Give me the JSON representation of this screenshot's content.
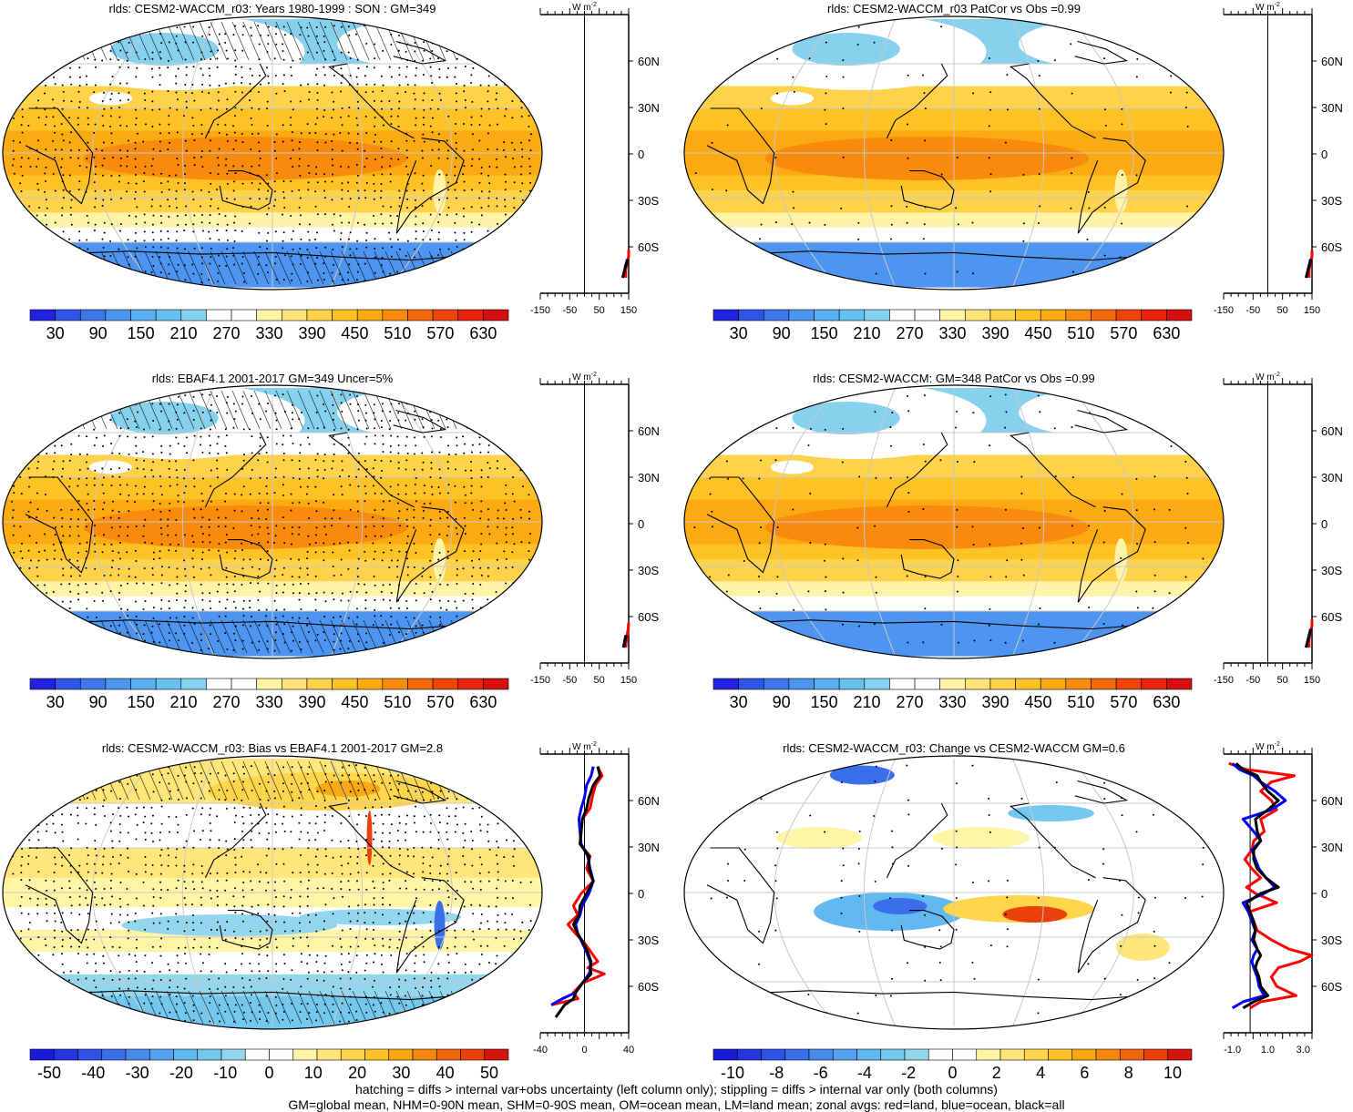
{
  "footnotes": [
    "hatching = diffs > internal var+obs uncertainty (left column only); stippling = diffs > internal var only (both columns)",
    "GM=global mean, NHM=0-90N mean, SHM=0-90S mean, OM=ocean mean, LM=land mean; zonal avgs: red=land, blue=ocean, black=all"
  ],
  "colors": {
    "land": "#ff0000",
    "ocean": "#0000ff",
    "all": "#000000",
    "graticule": "#c8c8c8",
    "coast": "#000000"
  },
  "chart_data": [
    {
      "type": "heatmap",
      "title": "rlds: CESM2-WACCM_r03: Years 1980-1999 : SON : GM=349",
      "field": "abs",
      "palette": "absolute",
      "colorbar_labels": [
        "30",
        "90",
        "150",
        "210",
        "270",
        "330",
        "390",
        "450",
        "510",
        "570",
        "630"
      ],
      "hatching": true,
      "stippling": "dense",
      "zonal_panel": {
        "unit": "W m-2",
        "x_ticks": [
          "-150",
          "-50",
          "50",
          "150"
        ],
        "xlim": [
          -150,
          150
        ],
        "lat_labels": [
          "60N",
          "30N",
          "0",
          "30S",
          "60S"
        ],
        "series": [
          {
            "color": "land",
            "lat": [
              -62,
              -66,
              -70,
              -75,
              -80
            ],
            "values": [
              150,
              150,
              145,
              140,
              140
            ]
          },
          {
            "color": "ocean",
            "lat": [
              -68,
              -72,
              -76,
              -80
            ],
            "values": [
              145,
              140,
              135,
              130
            ]
          },
          {
            "color": "all",
            "lat": [
              -68,
              -72,
              -76,
              -80
            ],
            "values": [
              148,
              140,
              135,
              130
            ]
          }
        ]
      }
    },
    {
      "type": "heatmap",
      "title": "rlds: CESM2-WACCM_r03 PatCor vs Obs =0.99",
      "field": "abs",
      "palette": "absolute",
      "colorbar_labels": [
        "30",
        "90",
        "150",
        "210",
        "270",
        "330",
        "390",
        "450",
        "510",
        "570",
        "630"
      ],
      "hatching": false,
      "stippling": "sparse",
      "zonal_panel": {
        "unit": "W m-2",
        "x_ticks": [
          "-150",
          "-50",
          "50",
          "150"
        ],
        "xlim": [
          -150,
          150
        ],
        "lat_labels": [
          "60N",
          "30N",
          "0",
          "30S",
          "60S"
        ],
        "series": [
          {
            "color": "land",
            "lat": [
              -62,
              -66,
              -70,
              -75,
              -80
            ],
            "values": [
              150,
              150,
              145,
              140,
              140
            ]
          },
          {
            "color": "ocean",
            "lat": [
              -68,
              -72,
              -76,
              -80
            ],
            "values": [
              145,
              140,
              135,
              130
            ]
          },
          {
            "color": "all",
            "lat": [
              -68,
              -72,
              -76,
              -80
            ],
            "values": [
              148,
              140,
              135,
              130
            ]
          }
        ]
      }
    },
    {
      "type": "heatmap",
      "title": "rlds: EBAF4.1 2001-2017 GM=349 Uncer=5%",
      "field": "abs",
      "palette": "absolute",
      "colorbar_labels": [
        "30",
        "90",
        "150",
        "210",
        "270",
        "330",
        "390",
        "450",
        "510",
        "570",
        "630"
      ],
      "hatching": true,
      "stippling": "dense",
      "zonal_panel": {
        "unit": "W m-2",
        "x_ticks": [
          "-150",
          "-50",
          "50",
          "150"
        ],
        "xlim": [
          -150,
          150
        ],
        "lat_labels": [
          "60N",
          "30N",
          "0",
          "30S",
          "60S"
        ],
        "series": [
          {
            "color": "land",
            "lat": [
              -64,
              -68,
              -72,
              -76,
              -80
            ],
            "values": [
              150,
              148,
              145,
              142,
              140
            ]
          },
          {
            "color": "ocean",
            "lat": [
              -72,
              -76,
              -80
            ],
            "values": [
              140,
              136,
              132
            ]
          },
          {
            "color": "all",
            "lat": [
              -72,
              -76,
              -80
            ],
            "values": [
              142,
              137,
              133
            ]
          }
        ]
      }
    },
    {
      "type": "heatmap",
      "title": "rlds: CESM2-WACCM: GM=348 PatCor vs Obs =0.99",
      "field": "abs",
      "palette": "absolute",
      "colorbar_labels": [
        "30",
        "90",
        "150",
        "210",
        "270",
        "330",
        "390",
        "450",
        "510",
        "570",
        "630"
      ],
      "hatching": false,
      "stippling": "sparse",
      "zonal_panel": {
        "unit": "W m-2",
        "x_ticks": [
          "-150",
          "-50",
          "50",
          "150"
        ],
        "xlim": [
          -150,
          150
        ],
        "lat_labels": [
          "60N",
          "30N",
          "0",
          "30S",
          "60S"
        ],
        "series": [
          {
            "color": "land",
            "lat": [
              -62,
              -66,
              -70,
              -75,
              -80
            ],
            "values": [
              150,
              150,
              145,
              140,
              140
            ]
          },
          {
            "color": "ocean",
            "lat": [
              -68,
              -72,
              -76,
              -80
            ],
            "values": [
              145,
              140,
              135,
              130
            ]
          },
          {
            "color": "all",
            "lat": [
              -68,
              -72,
              -76,
              -80
            ],
            "values": [
              148,
              140,
              135,
              130
            ]
          }
        ]
      }
    },
    {
      "type": "heatmap",
      "title": "rlds: CESM2-WACCM_r03: Bias vs EBAF4.1 2001-2017  GM=2.8",
      "field": "bias",
      "palette": "difference",
      "colorbar_labels": [
        "-50",
        "-40",
        "-30",
        "-20",
        "-10",
        "0",
        "10",
        "20",
        "30",
        "40",
        "50"
      ],
      "hatching": true,
      "stippling": "dense",
      "zonal_panel": {
        "unit": "W m-2",
        "x_ticks": [
          "-40",
          "0",
          "40"
        ],
        "xlim": [
          -40,
          40
        ],
        "lat_labels": [
          "60N",
          "30N",
          "0",
          "30S",
          "60S"
        ],
        "series": [
          {
            "color": "land",
            "lat": [
              82,
              76,
              70,
              62,
              55,
              48,
              40,
              32,
              24,
              16,
              8,
              0,
              -8,
              -14,
              -20,
              -26,
              -32,
              -38,
              -44,
              -48,
              -52,
              -58,
              -64,
              -68,
              -72
            ],
            "values": [
              12,
              16,
              10,
              7,
              5,
              -2,
              -3,
              -4,
              5,
              2,
              8,
              -3,
              -10,
              -6,
              -15,
              -8,
              0,
              6,
              12,
              3,
              18,
              -2,
              -10,
              -6,
              -30
            ]
          },
          {
            "color": "ocean",
            "lat": [
              82,
              76,
              70,
              62,
              55,
              48,
              40,
              32,
              24,
              16,
              8,
              0,
              -8,
              -14,
              -20,
              -26,
              -32,
              -38,
              -44,
              -48,
              -52,
              -58,
              -64,
              -68,
              -72
            ],
            "values": [
              8,
              6,
              2,
              0,
              -3,
              -5,
              -4,
              -3,
              3,
              5,
              8,
              4,
              -2,
              -4,
              -8,
              -6,
              -2,
              2,
              5,
              6,
              4,
              -2,
              -8,
              -20,
              -30
            ]
          },
          {
            "color": "all",
            "lat": [
              82,
              76,
              70,
              62,
              55,
              48,
              40,
              32,
              24,
              16,
              8,
              0,
              -8,
              -14,
              -20,
              -26,
              -32,
              -38,
              -44,
              -48,
              -52,
              -58,
              -64,
              -68,
              -72,
              -76,
              -80
            ],
            "values": [
              12,
              14,
              8,
              4,
              2,
              -2,
              -3,
              -4,
              4,
              4,
              8,
              2,
              -4,
              -5,
              -10,
              -6,
              -1,
              3,
              6,
              5,
              6,
              -2,
              -8,
              -10,
              -18,
              -22,
              -26
            ]
          }
        ]
      }
    },
    {
      "type": "heatmap",
      "title": "rlds: CESM2-WACCM_r03: Change vs CESM2-WACCM GM=0.6",
      "field": "change",
      "palette": "difference",
      "colorbar_labels": [
        "-10",
        "-8",
        "-6",
        "-4",
        "-2",
        "0",
        "2",
        "4",
        "6",
        "8",
        "10"
      ],
      "hatching": false,
      "stippling": "sparse",
      "zonal_panel": {
        "unit": "W m-2",
        "x_ticks": [
          "-1.0",
          "1.0",
          "3.0"
        ],
        "xlim": [
          -1.5,
          3.5
        ],
        "lat_labels": [
          "60N",
          "30N",
          "0",
          "30S",
          "60S"
        ],
        "series": [
          {
            "color": "land",
            "lat": [
              84,
              80,
              76,
              72,
              66,
              60,
              54,
              48,
              40,
              34,
              28,
              22,
              16,
              10,
              4,
              0,
              -6,
              -12,
              -18,
              -24,
              -30,
              -36,
              -40,
              -44,
              -48,
              -54,
              -60,
              -66,
              -70,
              -74
            ],
            "values": [
              -1.2,
              -0.2,
              2.5,
              1.2,
              0.6,
              1.2,
              1.5,
              0.6,
              0.8,
              0.2,
              0.1,
              -0.3,
              0.1,
              0.6,
              -0.2,
              0.3,
              1.5,
              -0.1,
              0.2,
              0.4,
              1.2,
              2.2,
              3.5,
              2.8,
              1.6,
              1.2,
              1.5,
              2.6,
              0.6,
              0.0
            ]
          },
          {
            "color": "ocean",
            "lat": [
              84,
              80,
              76,
              72,
              66,
              60,
              54,
              48,
              40,
              34,
              28,
              22,
              16,
              10,
              4,
              0,
              -6,
              -12,
              -18,
              -24,
              -30,
              -36,
              -40,
              -44,
              -48,
              -54,
              -60,
              -66,
              -70,
              -74
            ],
            "values": [
              -1.0,
              -0.6,
              0.2,
              0.6,
              1.4,
              2.0,
              1.2,
              -0.4,
              0.2,
              0.6,
              0.1,
              0.3,
              0.5,
              0.9,
              1.4,
              0.8,
              -0.4,
              -0.1,
              0.1,
              0.3,
              0.1,
              0.4,
              0.2,
              0.1,
              0.2,
              0.4,
              0.5,
              0.8,
              -0.4,
              -1.0
            ]
          },
          {
            "color": "all",
            "lat": [
              84,
              80,
              76,
              72,
              66,
              60,
              54,
              48,
              40,
              34,
              28,
              22,
              16,
              10,
              4,
              0,
              -6,
              -12,
              -18,
              -24,
              -30,
              -36,
              -40,
              -44,
              -48,
              -54,
              -60,
              -66,
              -70,
              -74
            ],
            "values": [
              -0.8,
              -0.4,
              0.4,
              0.6,
              1.0,
              1.6,
              1.0,
              0.3,
              0.4,
              0.6,
              0.2,
              0.2,
              0.4,
              0.9,
              1.6,
              0.6,
              -0.2,
              0.0,
              0.2,
              0.3,
              0.2,
              0.4,
              0.6,
              0.4,
              0.3,
              0.5,
              0.6,
              1.0,
              0.2,
              -0.4
            ]
          }
        ]
      }
    }
  ]
}
